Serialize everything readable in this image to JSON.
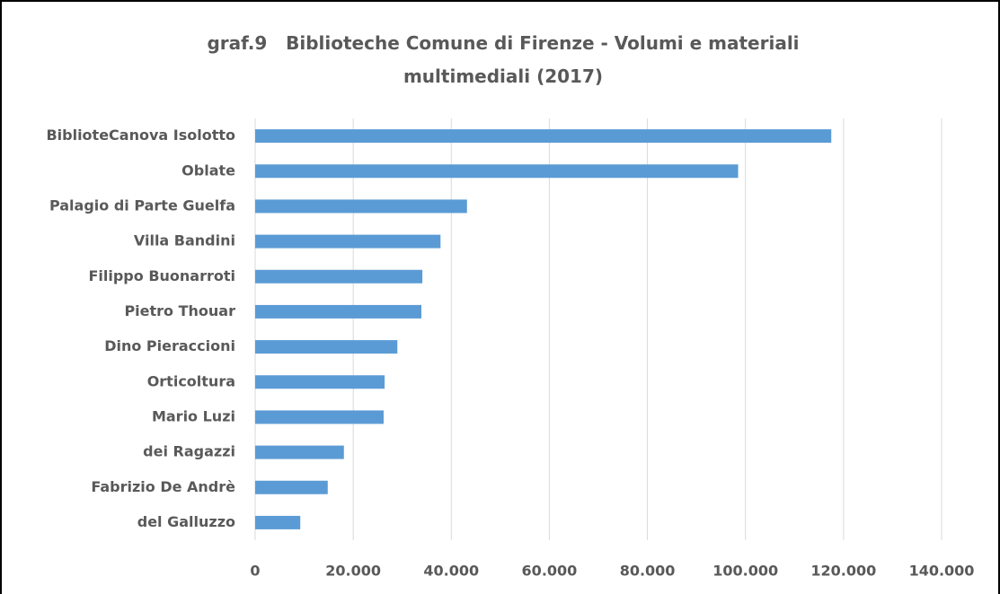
{
  "chart_data": {
    "type": "barh",
    "title": "graf.9   Biblioteche Comune di Firenze - Volumi e materiali  multimediali (2017)",
    "categories": [
      "BiblioteCanova Isolotto",
      "Oblate",
      "Palagio di Parte Guelfa",
      "Villa Bandini",
      "Filippo Buonarroti",
      "Pietro Thouar",
      "Dino Pieraccioni",
      "Orticoltura",
      "Mario Luzi",
      "dei Ragazzi",
      "Fabrizio De Andrè",
      "del Galluzzo"
    ],
    "values": [
      117500,
      98500,
      43200,
      37800,
      34100,
      33900,
      29000,
      26400,
      26200,
      18100,
      14800,
      9200
    ],
    "color": "#5b9bd5",
    "xlim": [
      0,
      140000
    ],
    "xticks": [
      0,
      {
        "value": 20000,
        "label": "20.000"
      },
      {
        "value": 40000,
        "label": "40.000"
      },
      {
        "value": 60000,
        "label": "60.000"
      },
      {
        "value": 80000,
        "label": "80.000"
      },
      {
        "value": 100000,
        "label": "100.000"
      },
      {
        "value": 120000,
        "label": "120.000"
      },
      {
        "value": 140000,
        "label": "140.000"
      }
    ],
    "grid": true
  }
}
